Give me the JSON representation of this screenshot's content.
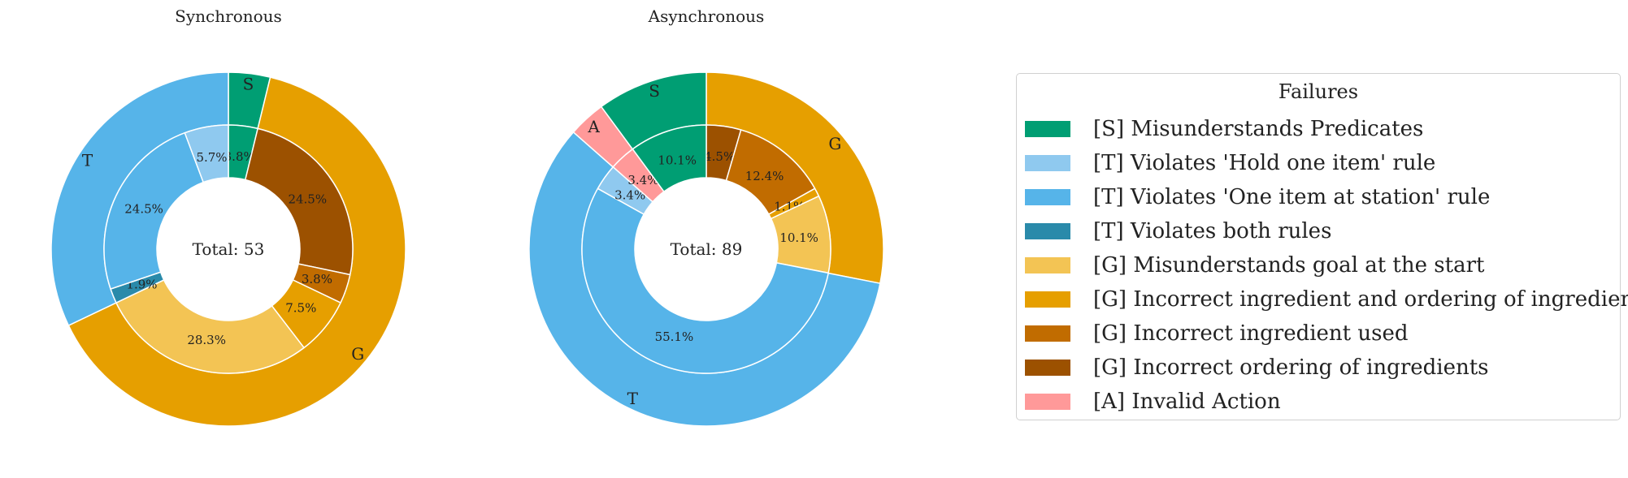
{
  "chart_data": [
    {
      "type": "pie",
      "title": "Synchronous",
      "center_text": "Total: 53",
      "outer": [
        {
          "label": "S",
          "value": 3.8,
          "color": "#009E73"
        },
        {
          "label": "G",
          "value": 64.1,
          "color": "#E69F00"
        },
        {
          "label": "T",
          "value": 32.1,
          "color": "#56B4E9"
        }
      ],
      "inner": [
        {
          "label": "3.8%",
          "value": 3.8,
          "color": "#009E73"
        },
        {
          "label": "24.5%",
          "value": 24.5,
          "color": "#9C5100"
        },
        {
          "label": "3.8%",
          "value": 3.8,
          "color": "#C16C00"
        },
        {
          "label": "7.5%",
          "value": 7.5,
          "color": "#E69F00"
        },
        {
          "label": "28.3%",
          "value": 28.3,
          "color": "#F3C454"
        },
        {
          "label": "1.9%",
          "value": 1.9,
          "color": "#2A8AAA"
        },
        {
          "label": "24.5%",
          "value": 24.5,
          "color": "#56B4E9"
        },
        {
          "label": "5.7%",
          "value": 5.7,
          "color": "#8FC9EF"
        }
      ]
    },
    {
      "type": "pie",
      "title": "Asynchronous",
      "center_text": "Total: 89",
      "outer": [
        {
          "label": "G",
          "value": 28.1,
          "color": "#E69F00"
        },
        {
          "label": "T",
          "value": 58.4,
          "color": "#56B4E9"
        },
        {
          "label": "A",
          "value": 3.4,
          "color": "#FF9999"
        },
        {
          "label": "S",
          "value": 10.1,
          "color": "#009E73"
        }
      ],
      "inner": [
        {
          "label": "4.5%",
          "value": 4.5,
          "color": "#9C5100"
        },
        {
          "label": "12.4%",
          "value": 12.4,
          "color": "#C16C00"
        },
        {
          "label": "1.1%",
          "value": 1.1,
          "color": "#E69F00"
        },
        {
          "label": "10.1%",
          "value": 10.1,
          "color": "#F3C454"
        },
        {
          "label": "55.1%",
          "value": 55.1,
          "color": "#56B4E9"
        },
        {
          "label": "3.4%",
          "value": 3.4,
          "color": "#8FC9EF"
        },
        {
          "label": "3.4%",
          "value": 3.4,
          "color": "#FF9999"
        },
        {
          "label": "10.1%",
          "value": 10.1,
          "color": "#009E73"
        }
      ]
    }
  ],
  "legend": {
    "title": "Failures",
    "placement": "right",
    "items": [
      {
        "label": "[S] Misunderstands Predicates",
        "color": "#009E73"
      },
      {
        "label": "[T] Violates 'Hold one item' rule",
        "color": "#8FC9EF"
      },
      {
        "label": "[T] Violates 'One item at station' rule",
        "color": "#56B4E9"
      },
      {
        "label": "[T] Violates both rules",
        "color": "#2A8AAA"
      },
      {
        "label": "[G] Misunderstands goal at the start",
        "color": "#F3C454"
      },
      {
        "label": "[G] Incorrect ingredient and ordering of ingredients",
        "color": "#E69F00"
      },
      {
        "label": "[G] Incorrect ingredient used",
        "color": "#C16C00"
      },
      {
        "label": "[G] Incorrect ordering of ingredients",
        "color": "#9C5100"
      },
      {
        "label": "[A] Invalid Action",
        "color": "#FF9999"
      }
    ]
  }
}
